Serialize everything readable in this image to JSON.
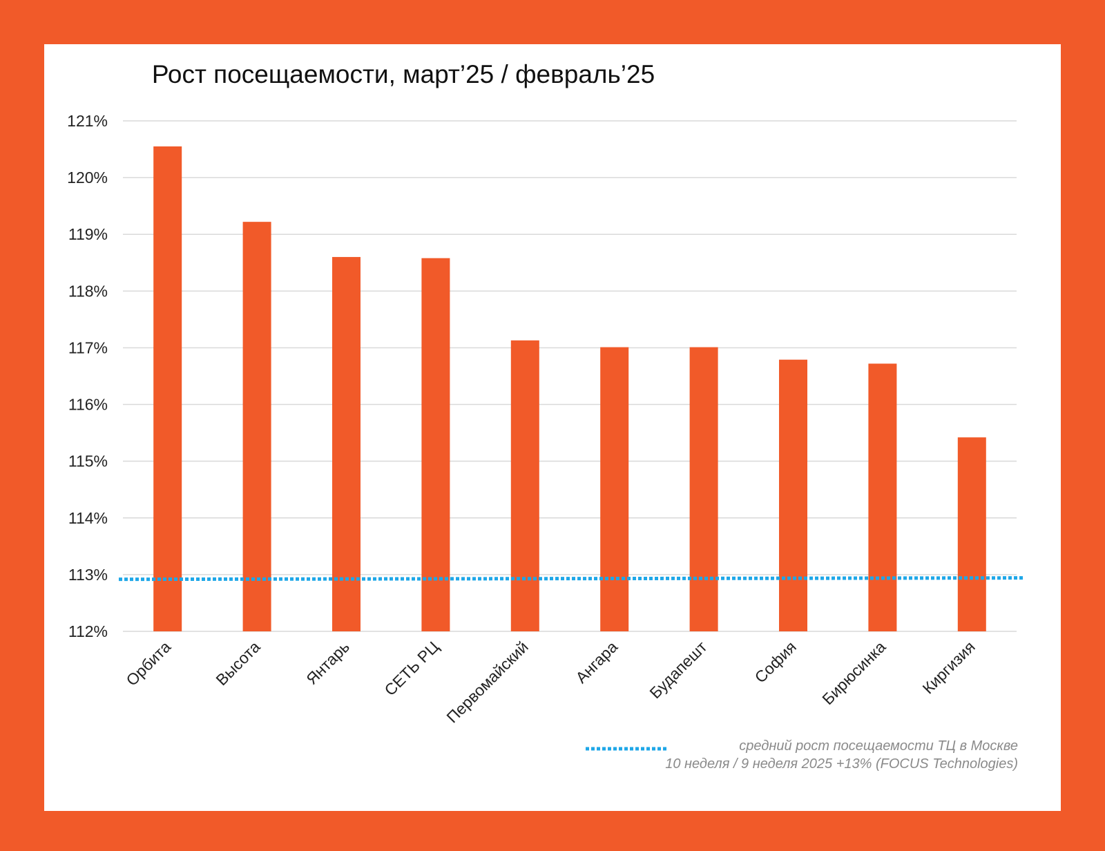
{
  "colors": {
    "background": "#F15A29",
    "panel": "#FFFFFF",
    "bar": "#F15A29",
    "reference_line": "#1EA7E8",
    "grid": "#D9D9D9"
  },
  "chart_data": {
    "type": "bar",
    "title": "Рост посещаемости, март’25 / февраль’25",
    "categories": [
      "Орбита",
      "Высота",
      "Янтарь",
      "СЕТЬ РЦ",
      "Первомайский",
      "Ангара",
      "Будапешт",
      "София",
      "Бирюсинка",
      "Киргизия"
    ],
    "values": [
      120.55,
      119.22,
      118.6,
      118.58,
      117.13,
      117.01,
      117.01,
      116.79,
      116.72,
      115.42
    ],
    "ylim": [
      112,
      121
    ],
    "yticks": [
      "112%",
      "113%",
      "114%",
      "115%",
      "116%",
      "117%",
      "118%",
      "119%",
      "120%",
      "121%"
    ],
    "grid": true,
    "reference_line": {
      "value": 112.93,
      "style": "dotted",
      "label_line1": "средний рост посещаемости ТЦ в Москве",
      "label_line2": "10 неделя / 9 неделя 2025 +13% (FOCUS Technologies)"
    },
    "legend": "bottom-right"
  }
}
